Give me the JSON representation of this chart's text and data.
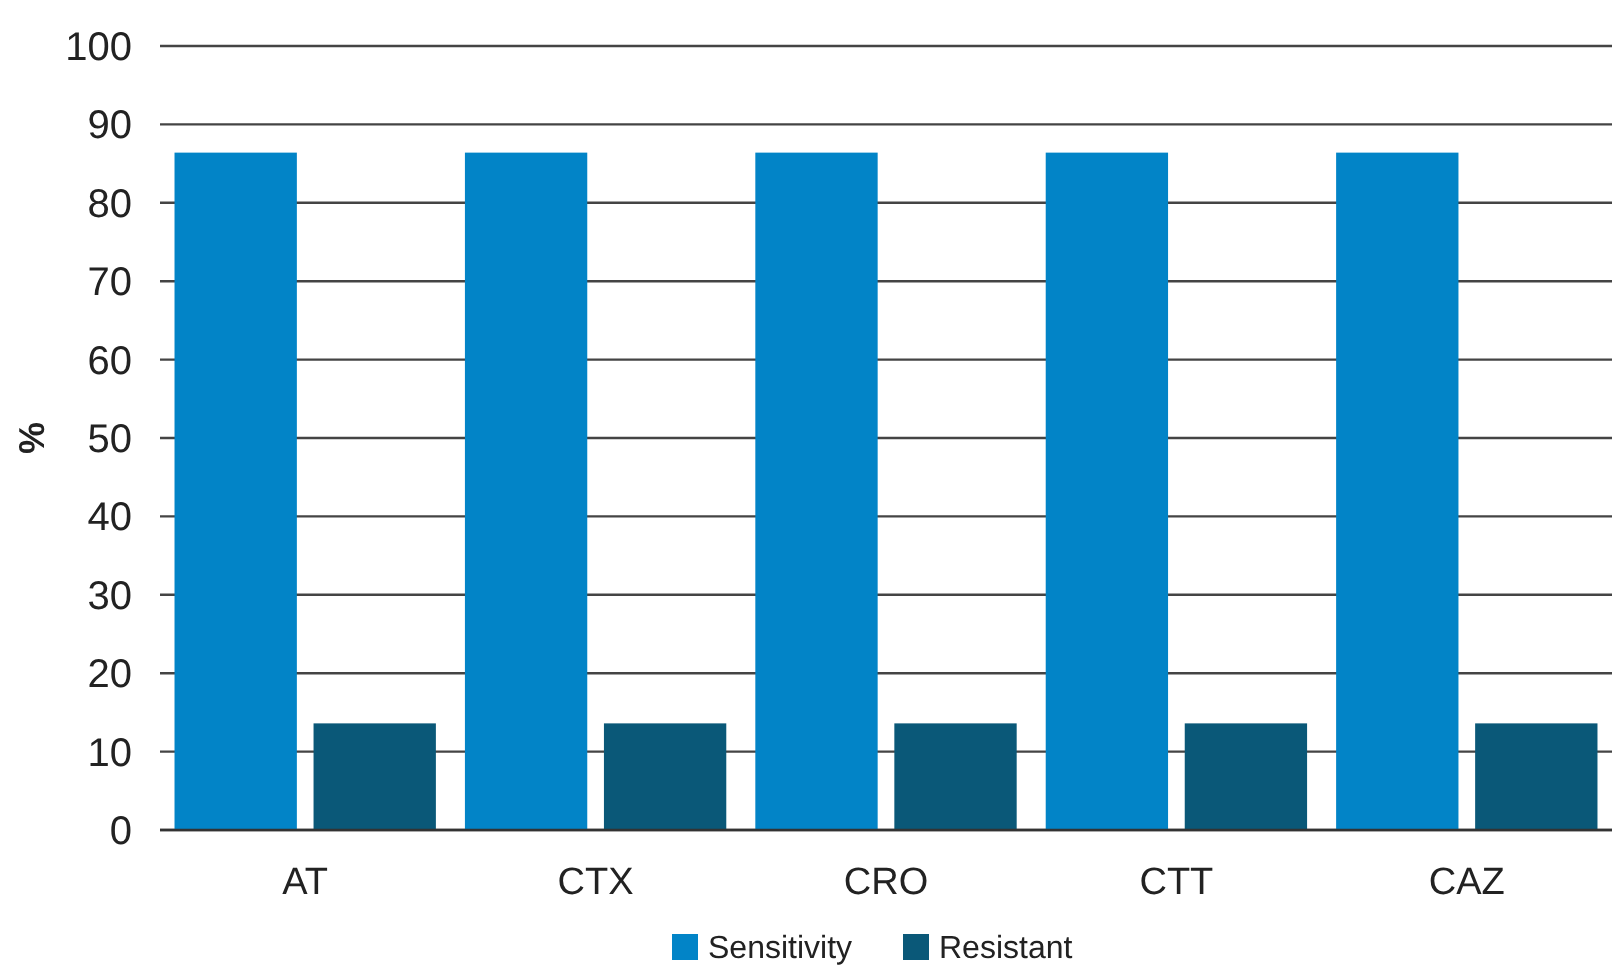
{
  "chart_data": {
    "type": "bar",
    "ylabel": "%",
    "categories": [
      "AT",
      "CTX",
      "CRO",
      "CTT",
      "CAZ"
    ],
    "series": [
      {
        "name": "Sensitivity",
        "color": "#0284c7",
        "values": [
          86.4,
          86.4,
          86.4,
          86.4,
          86.4
        ]
      },
      {
        "name": "Resistant",
        "color": "#0a5878",
        "values": [
          13.6,
          13.6,
          13.6,
          13.6,
          13.6
        ]
      }
    ],
    "ylim": [
      0,
      100
    ],
    "yticks": [
      0,
      10,
      20,
      30,
      40,
      50,
      60,
      70,
      80,
      90,
      100
    ],
    "grid": "y",
    "legend": "bottom"
  }
}
